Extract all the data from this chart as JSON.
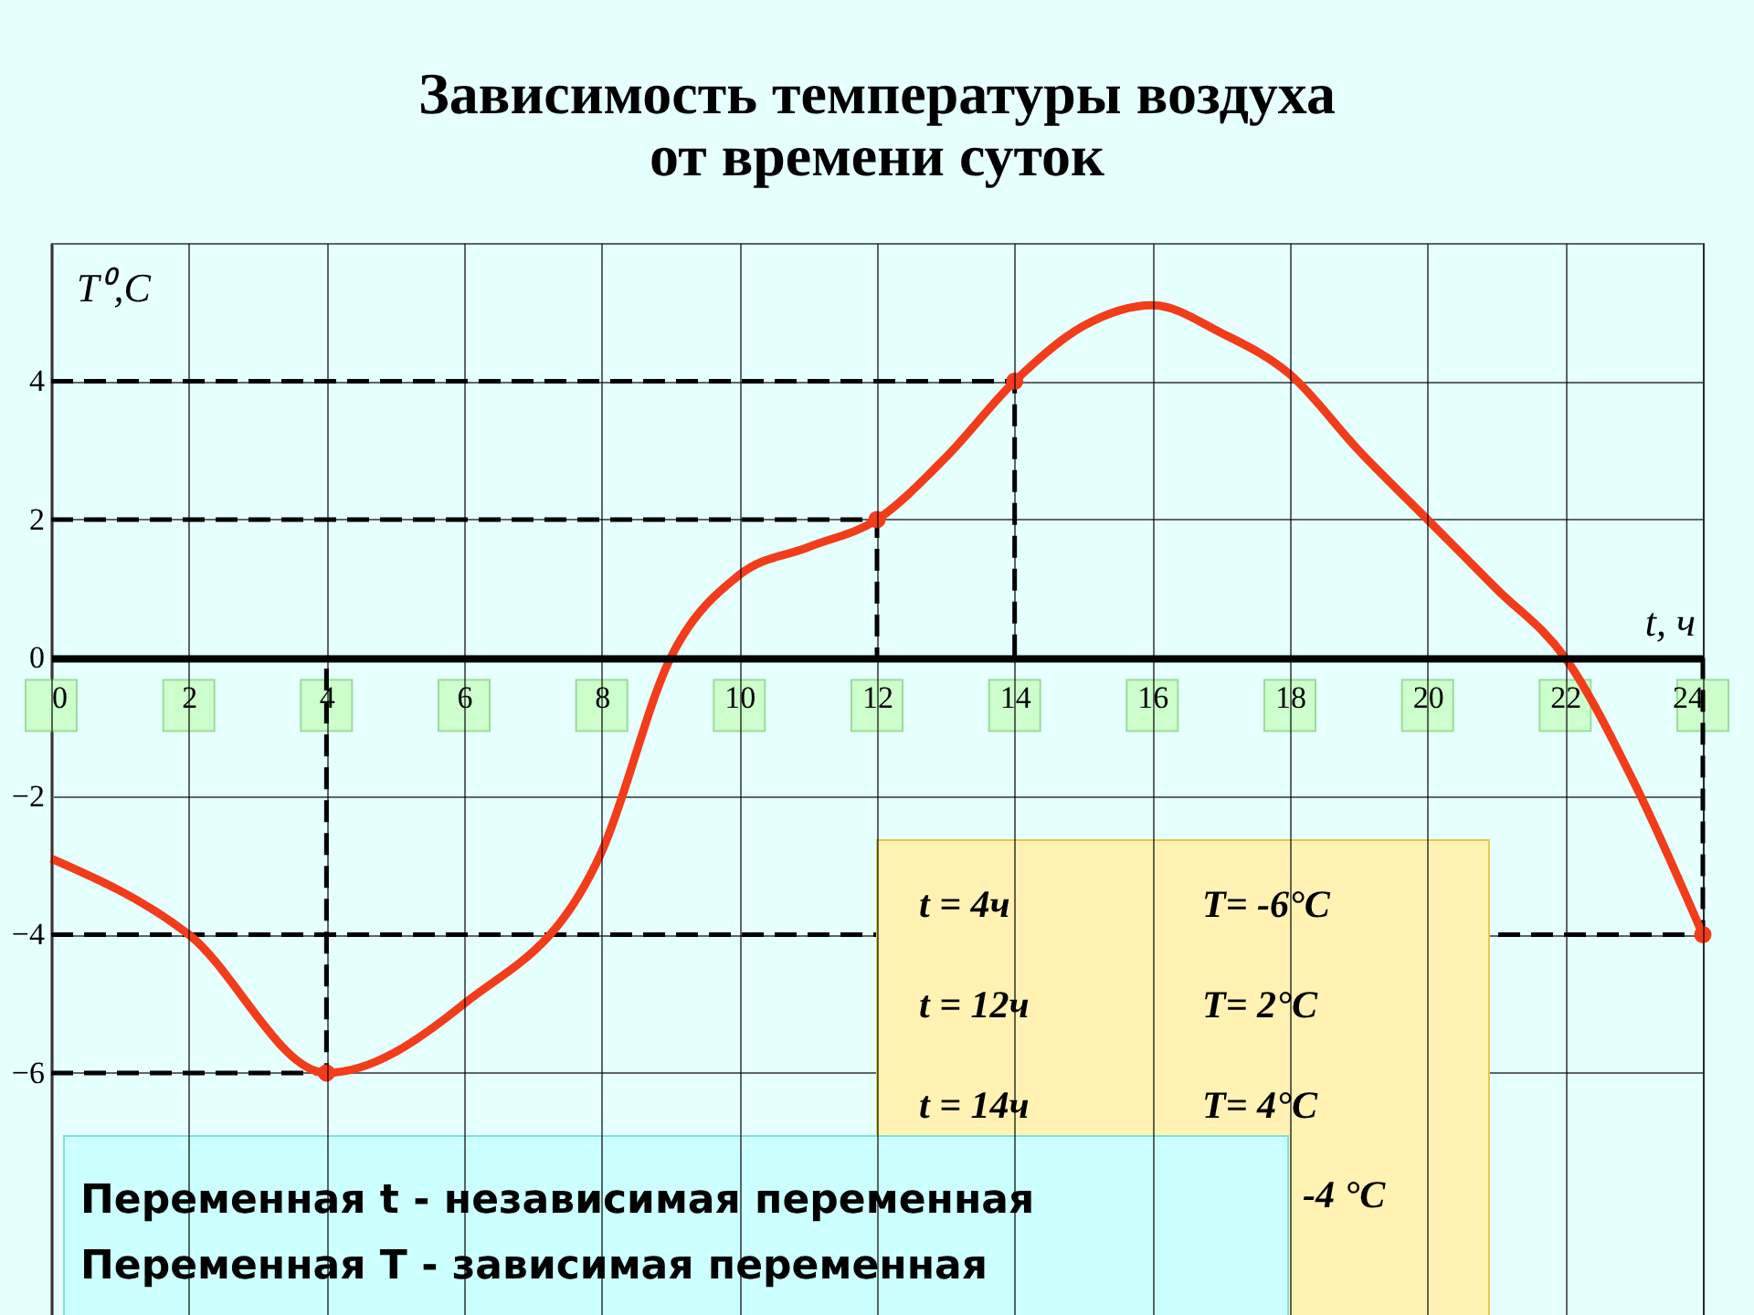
{
  "chart_data": {
    "type": "line",
    "title": [
      "Зависимость температуры воздуха",
      "от времени суток"
    ],
    "xlabel": "t, ч",
    "ylabel": "T⁰,C",
    "xlim": [
      0,
      24
    ],
    "ylim": [
      -9.5,
      6
    ],
    "xticks": [
      0,
      2,
      4,
      6,
      8,
      10,
      12,
      14,
      16,
      18,
      20,
      22,
      24
    ],
    "yticks": [
      -6,
      -4,
      -2,
      0,
      2,
      4
    ],
    "grid": true,
    "line_style": "solid",
    "series": [
      {
        "color": "#000000",
        "line_style": "dashed",
        "x": [
          0,
          4,
          4
        ],
        "values": [
          -6,
          -6,
          0
        ]
      },
      {
        "color": "#000000",
        "line_style": "dashed",
        "x": [
          0,
          12,
          12
        ],
        "values": [
          2,
          2,
          0
        ]
      },
      {
        "color": "#000000",
        "line_style": "dashed",
        "x": [
          0,
          14,
          14
        ],
        "values": [
          4,
          4,
          0
        ]
      },
      {
        "color": "#000000",
        "line_style": "dashed",
        "x": [
          0,
          24,
          24
        ],
        "values": [
          -4,
          -4,
          0
        ]
      },
      {
        "color": "#f23c1a",
        "x": [
          0,
          2,
          4,
          6,
          8,
          9,
          10,
          11,
          12,
          13,
          14,
          15,
          16,
          17,
          18,
          19,
          20,
          21,
          22,
          23,
          24
        ],
        "values": [
          -2.9,
          -4,
          -6,
          -5,
          -2.8,
          0,
          1.2,
          1.6,
          2,
          2.9,
          4,
          4.8,
          5.1,
          4.7,
          4.1,
          3,
          2,
          1,
          0,
          -1.8,
          -4
        ]
      },
      {
        "type": "scatter",
        "color": "#f23c1a",
        "marker": "circle",
        "x": [
          4,
          12,
          14,
          24
        ],
        "values": [
          -6,
          2,
          4,
          -4
        ]
      }
    ],
    "annotations": [
      "t = 4ч",
      "T= -6°C",
      "t = 12ч",
      "T= 2°C",
      "t = 14ч",
      "T= 4°C",
      "-4 °C",
      "Переменная t - независимая переменная",
      "Переменная T - зависимая переменная"
    ]
  }
}
